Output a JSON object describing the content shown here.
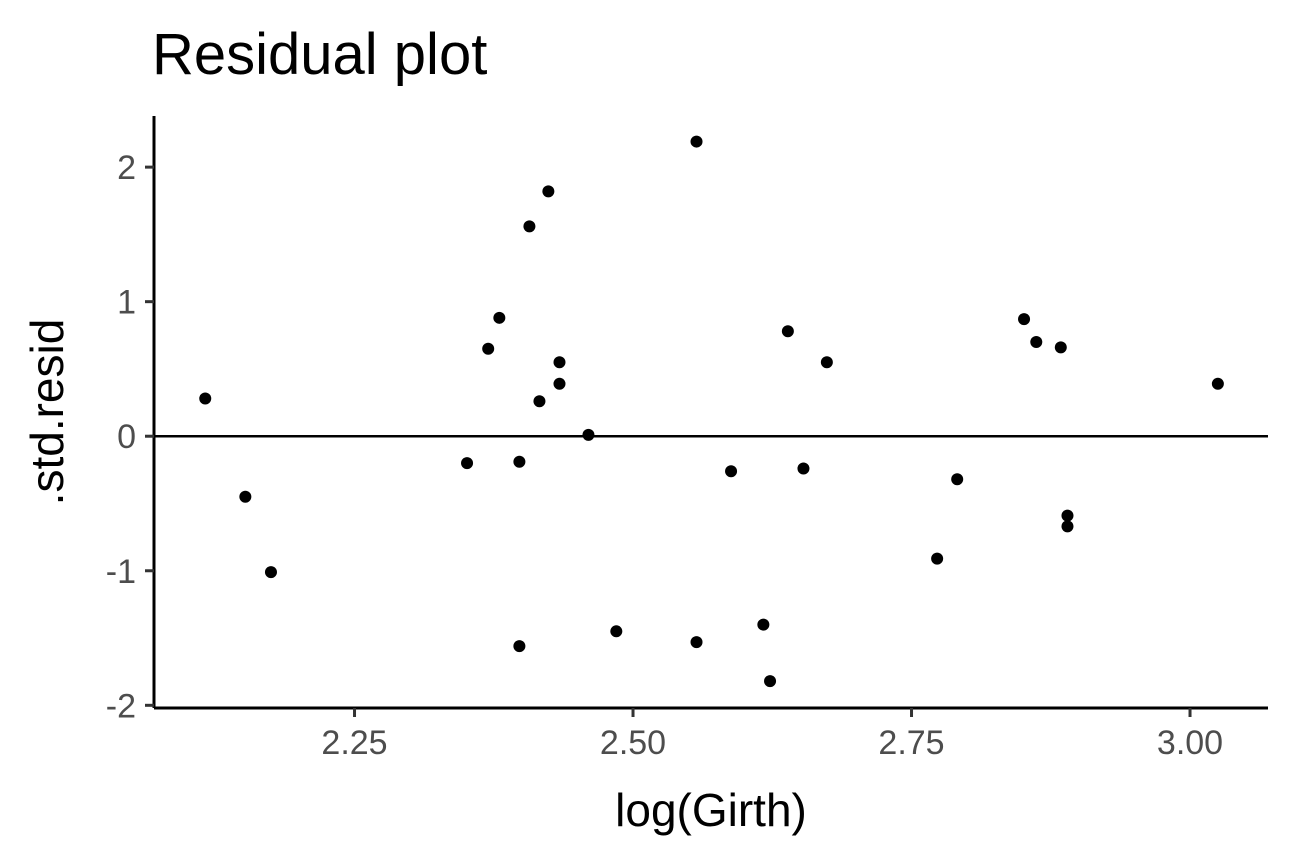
{
  "chart_data": {
    "type": "scatter",
    "title": "Residual plot",
    "xlabel": "log(Girth)",
    "ylabel": ".std.resid",
    "xlim": [
      2.07,
      3.07
    ],
    "ylim": [
      -2.02,
      2.38
    ],
    "x_ticks": [
      {
        "value": 2.25,
        "label": "2.25"
      },
      {
        "value": 2.5,
        "label": "2.50"
      },
      {
        "value": 2.75,
        "label": "2.75"
      },
      {
        "value": 3.0,
        "label": "3.00"
      }
    ],
    "y_ticks": [
      {
        "value": 2,
        "label": "2"
      },
      {
        "value": 1,
        "label": "1"
      },
      {
        "value": 0,
        "label": "0"
      },
      {
        "value": -1,
        "label": "-1"
      },
      {
        "value": -2,
        "label": "-2"
      }
    ],
    "reference_line_y": 0,
    "grid": false,
    "point_color": "#000000",
    "points": [
      {
        "x": 2.116,
        "y": 0.28
      },
      {
        "x": 2.152,
        "y": -0.45
      },
      {
        "x": 2.175,
        "y": -1.01
      },
      {
        "x": 2.351,
        "y": -0.2
      },
      {
        "x": 2.37,
        "y": 0.65
      },
      {
        "x": 2.38,
        "y": 0.88
      },
      {
        "x": 2.398,
        "y": -0.19
      },
      {
        "x": 2.398,
        "y": -1.56
      },
      {
        "x": 2.407,
        "y": 1.56
      },
      {
        "x": 2.416,
        "y": 0.26
      },
      {
        "x": 2.424,
        "y": 1.82
      },
      {
        "x": 2.434,
        "y": 0.55
      },
      {
        "x": 2.434,
        "y": 0.39
      },
      {
        "x": 2.46,
        "y": 0.01
      },
      {
        "x": 2.485,
        "y": -1.45
      },
      {
        "x": 2.557,
        "y": 2.19
      },
      {
        "x": 2.557,
        "y": -1.53
      },
      {
        "x": 2.588,
        "y": -0.26
      },
      {
        "x": 2.617,
        "y": -1.4
      },
      {
        "x": 2.623,
        "y": -1.82
      },
      {
        "x": 2.639,
        "y": 0.78
      },
      {
        "x": 2.653,
        "y": -0.24
      },
      {
        "x": 2.674,
        "y": 0.55
      },
      {
        "x": 2.773,
        "y": -0.91
      },
      {
        "x": 2.791,
        "y": -0.32
      },
      {
        "x": 2.851,
        "y": 0.87
      },
      {
        "x": 2.862,
        "y": 0.7
      },
      {
        "x": 2.884,
        "y": 0.66
      },
      {
        "x": 2.89,
        "y": -0.59
      },
      {
        "x": 2.89,
        "y": -0.67
      },
      {
        "x": 3.025,
        "y": 0.39
      }
    ]
  }
}
